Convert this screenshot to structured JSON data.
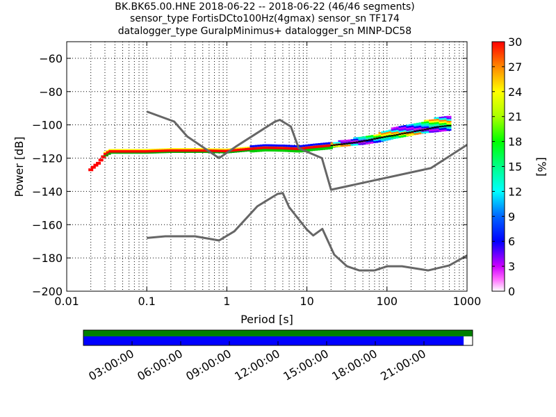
{
  "title_lines": [
    "BK.BK65.00.HNE   2018-06-22 -- 2018-06-22  (46/46 segments)",
    "sensor_type FortisDCto100Hz(4gmax) sensor_sn TF174",
    "datalogger_type GuralpMinimus+ datalogger_sn MINP-DC58"
  ],
  "chart_data": {
    "type": "heatmap",
    "xlabel": "Period [s]",
    "ylabel": "Power [dB]",
    "xscale": "log",
    "xlim": [
      0.01,
      1000
    ],
    "ylim": [
      -200,
      -50
    ],
    "x_ticks": [
      "0.01",
      "0.1",
      "1",
      "10",
      "100",
      "1000"
    ],
    "y_ticks": [
      "−200",
      "−180",
      "−160",
      "−140",
      "−120",
      "−100",
      "−80",
      "−60"
    ],
    "grid": "dotted vertical at log minors",
    "colorbar": {
      "label": "[%]",
      "min": 0,
      "max": 30,
      "ticks": [
        "0",
        "3",
        "6",
        "9",
        "12",
        "15",
        "18",
        "21",
        "24",
        "27",
        "30"
      ]
    },
    "noise_models": [
      {
        "name": "",
        "color": "#666666",
        "points": [
          [
            0.1,
            -92
          ],
          [
            0.22,
            -98
          ],
          [
            0.32,
            -107
          ],
          [
            0.8,
            -120
          ],
          [
            1.3,
            -113
          ],
          [
            4,
            -98
          ],
          [
            4.6,
            -97
          ],
          [
            6.3,
            -101
          ],
          [
            7.9,
            -114
          ],
          [
            15.4,
            -120
          ],
          [
            20,
            -139
          ],
          [
            354,
            -126
          ],
          [
            1000,
            -112
          ]
        ]
      },
      {
        "name": "",
        "color": "#666666",
        "points": [
          [
            0.1,
            -168
          ],
          [
            0.17,
            -167
          ],
          [
            0.4,
            -167
          ],
          [
            0.8,
            -169.5
          ],
          [
            1.24,
            -164
          ],
          [
            2.4,
            -149
          ],
          [
            4.3,
            -141.5
          ],
          [
            5,
            -141
          ],
          [
            6,
            -149.5
          ],
          [
            10,
            -163
          ],
          [
            12,
            -166.5
          ],
          [
            15.6,
            -162.5
          ],
          [
            21.9,
            -178
          ],
          [
            31.6,
            -185
          ],
          [
            45,
            -187.5
          ],
          [
            70,
            -187.5
          ],
          [
            101,
            -185
          ],
          [
            154,
            -185
          ],
          [
            328,
            -187.5
          ],
          [
            600,
            -184.5
          ],
          [
            1000,
            -178.5
          ]
        ]
      }
    ],
    "ppsd_trace": {
      "period": [
        0.02,
        0.022,
        0.025,
        0.03,
        0.035,
        0.05,
        0.1,
        0.2,
        0.5,
        1,
        2,
        3,
        5,
        8,
        12,
        20,
        30,
        50,
        80,
        120,
        200,
        300,
        400,
        600
      ],
      "power": [
        -127,
        -125,
        -123,
        -118,
        -116,
        -116,
        -116,
        -115.5,
        -115.5,
        -115.8,
        -114.5,
        -113.8,
        -114,
        -114.5,
        -113.5,
        -112.5,
        -111.5,
        -110,
        -108,
        -106.5,
        -104.5,
        -103,
        -101.5,
        -100.5
      ]
    },
    "upper_lobe": {
      "period": [
        0.08,
        0.1,
        0.15,
        0.2,
        0.3,
        0.5,
        0.7
      ],
      "power": [
        -115,
        -113.5,
        -111,
        -109,
        -108.5,
        -112,
        -115
      ]
    },
    "spread": {
      "period": [
        20,
        30,
        50,
        80,
        120,
        200,
        300,
        400,
        600
      ],
      "upper": [
        -111,
        -109,
        -107,
        -105,
        -102,
        -99.5,
        -97.5,
        -96,
        -94
      ],
      "lower": [
        -113,
        -112.5,
        -111.5,
        -110,
        -108,
        -106,
        -104.5,
        -104,
        -103
      ]
    }
  },
  "timeline": {
    "ticks": [
      "03:00:00",
      "06:00:00",
      "09:00:00",
      "12:00:00",
      "15:00:00",
      "18:00:00",
      "21:00:00"
    ],
    "top_bar_color": "#008000",
    "bottom_bar_color": "#0000ff",
    "bottom_bar_fraction": 0.977
  }
}
